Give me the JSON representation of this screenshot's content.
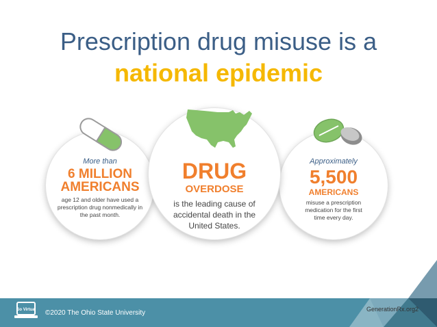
{
  "title": {
    "line1": "Prescription drug misuse is a",
    "line2": "national epidemic"
  },
  "stats": [
    {
      "intro": "More than",
      "headline": "6 MILLION",
      "subheadline": "AMERICANS",
      "description_lines": [
        "age 12 and older have used a",
        "prescription drug nonmedically in",
        "the past month."
      ],
      "icon": "capsule-icon"
    },
    {
      "headline": "DRUG",
      "subheadline": "OVERDOSE",
      "description_lines": [
        "is the leading cause of",
        "accidental death in the",
        "United States."
      ],
      "icon": "usa-map-icon"
    },
    {
      "intro": "Approximately",
      "headline": "5,500",
      "subheadline": "AMERICANS",
      "description_lines": [
        "misuse a prescription",
        "medication for the first",
        "time every day."
      ],
      "icon": "pills-icon"
    }
  ],
  "footer": {
    "copyright": "©2020  The Ohio State University",
    "site": "GenerationRx.org",
    "page_number": "2",
    "logo_text": "Go Virtual"
  },
  "colors": {
    "title_blue": "#3b5e86",
    "title_yellow": "#f5b800",
    "stat_orange": "#f07f2d",
    "footer_teal": "#4c90a7",
    "icon_green": "#86c26a"
  }
}
